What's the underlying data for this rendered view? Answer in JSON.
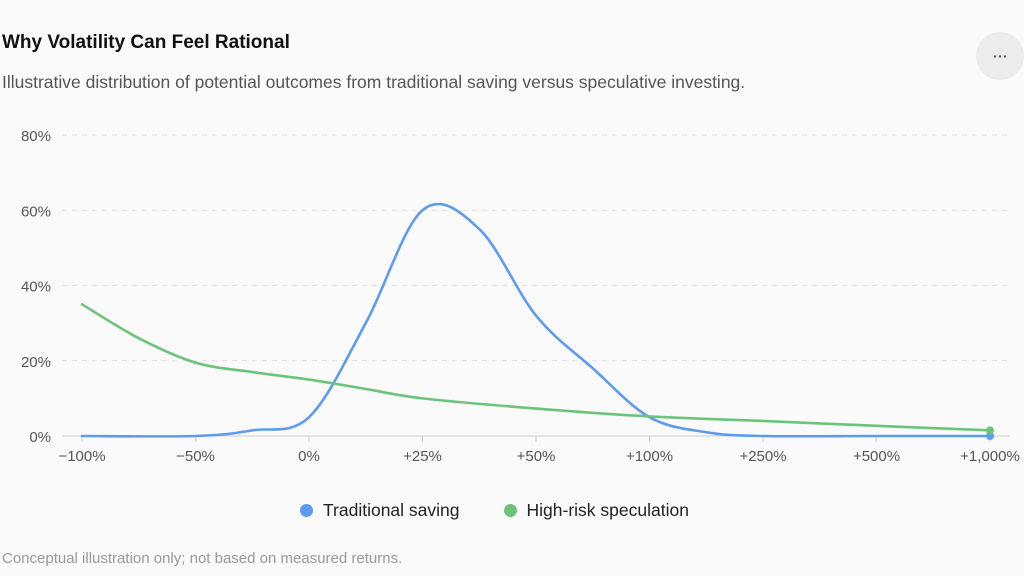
{
  "header": {
    "title": "Why Volatility Can Feel Rational",
    "subtitle": "Illustrative distribution of potential outcomes from traditional saving versus speculative investing.",
    "more_label": "···"
  },
  "footnote": "Conceptual illustration only; not based on measured returns.",
  "colors": {
    "traditional": "#5b9cf0",
    "speculation": "#6cc47a",
    "grid": "#dddddd",
    "axis_text": "#555555"
  },
  "chart_data": {
    "type": "line",
    "title": "Why Volatility Can Feel Rational",
    "subtitle": "Illustrative distribution of potential outcomes from traditional saving versus speculative investing.",
    "categories": [
      "−100%",
      "−50%",
      "0%",
      "+25%",
      "+50%",
      "+100%",
      "+250%",
      "+500%",
      "+1,000%"
    ],
    "y_tick_labels": [
      "0%",
      "20%",
      "40%",
      "60%",
      "80%"
    ],
    "y_ticks": [
      0,
      20,
      40,
      60,
      80
    ],
    "ylim": [
      0,
      80
    ],
    "grid": true,
    "legend_position": "bottom",
    "series": [
      {
        "name": "Traditional saving",
        "x": [
          0,
          1,
          1.5,
          2,
          2.5,
          3,
          3.5,
          4,
          4.5,
          5,
          5.5,
          6,
          7,
          8
        ],
        "values": [
          0,
          0,
          1.5,
          5,
          30,
          60,
          55,
          32,
          18,
          5,
          1,
          0,
          0,
          0
        ]
      },
      {
        "name": "High-risk speculation",
        "x": [
          0,
          0.5,
          1,
          1.5,
          2,
          2.5,
          3,
          4,
          5,
          6,
          7,
          8
        ],
        "values": [
          35,
          26,
          19.5,
          17,
          15,
          12.5,
          10,
          7.3,
          5.2,
          4,
          2.7,
          1.5
        ]
      }
    ]
  }
}
